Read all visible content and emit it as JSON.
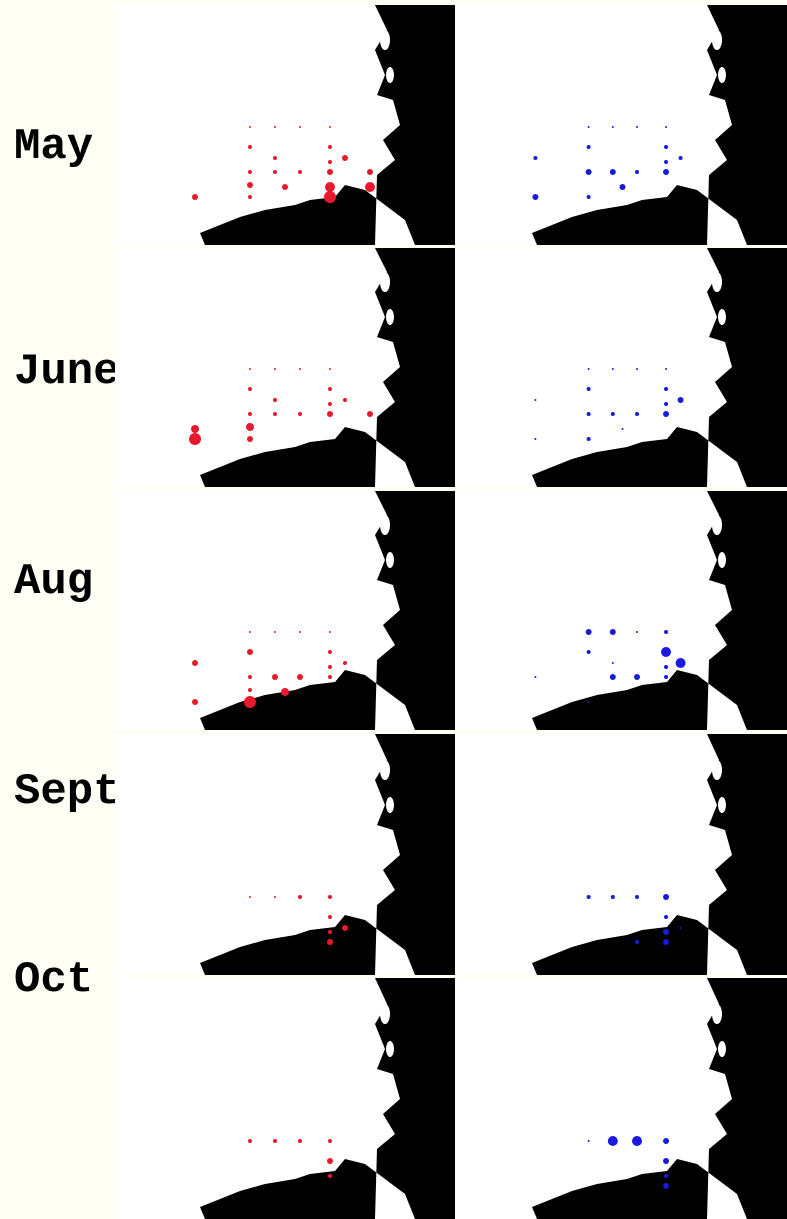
{
  "months": [
    {
      "label": "May",
      "red": [
        [
          25,
          1
        ],
        [
          50,
          1
        ],
        [
          75,
          1
        ],
        [
          100,
          1
        ],
        [
          100,
          2
        ],
        [
          100,
          2
        ],
        [
          100,
          3
        ],
        [
          100,
          3
        ],
        [
          120,
          2
        ],
        [
          75,
          2
        ],
        [
          50,
          2
        ],
        [
          50,
          2
        ],
        [
          75,
          2
        ],
        [
          25,
          2
        ],
        [
          25,
          3
        ],
        [
          -45,
          3
        ],
        [
          25,
          3
        ],
        [
          140,
          3
        ],
        [
          100,
          5
        ],
        [
          100,
          6
        ],
        [
          140,
          5
        ]
      ],
      "blue": [
        [
          25,
          1
        ],
        [
          50,
          1
        ],
        [
          75,
          1
        ],
        [
          100,
          1
        ],
        [
          100,
          2
        ],
        [
          100,
          2
        ],
        [
          100,
          3
        ],
        [
          125,
          2
        ],
        [
          75,
          2
        ],
        [
          50,
          3
        ],
        [
          25,
          2
        ],
        [
          25,
          3
        ],
        [
          -45,
          2
        ],
        [
          25,
          2
        ],
        [
          100,
          3
        ],
        [
          140,
          3
        ]
      ]
    },
    {
      "label": "June",
      "red": [
        [
          25,
          1
        ],
        [
          50,
          1
        ],
        [
          75,
          1
        ],
        [
          100,
          1
        ],
        [
          100,
          2
        ],
        [
          100,
          2
        ],
        [
          100,
          3
        ],
        [
          115,
          2
        ],
        [
          75,
          2
        ],
        [
          50,
          2
        ],
        [
          25,
          2
        ],
        [
          25,
          2
        ],
        [
          75,
          2
        ],
        [
          50,
          3
        ],
        [
          -45,
          4
        ],
        [
          100,
          6
        ],
        [
          155,
          4
        ],
        [
          125,
          3
        ]
      ],
      "blue": [
        [
          25,
          1
        ],
        [
          50,
          1
        ],
        [
          75,
          1
        ],
        [
          100,
          1
        ],
        [
          100,
          2
        ],
        [
          100,
          2
        ],
        [
          100,
          3
        ],
        [
          100,
          3
        ],
        [
          125,
          2
        ],
        [
          75,
          2
        ],
        [
          50,
          2
        ],
        [
          25,
          2
        ],
        [
          -45,
          1
        ],
        [
          25,
          2
        ],
        [
          125,
          1
        ],
        [
          150,
          1
        ]
      ]
    },
    {
      "label": "Aug",
      "red": [
        [
          25,
          1
        ],
        [
          50,
          1
        ],
        [
          100,
          1
        ],
        [
          125,
          1
        ],
        [
          100,
          2
        ],
        [
          100,
          2
        ],
        [
          100,
          2
        ],
        [
          125,
          2
        ],
        [
          25,
          3
        ],
        [
          50,
          3
        ],
        [
          75,
          3
        ],
        [
          25,
          2
        ],
        [
          -45,
          3
        ],
        [
          10,
          6
        ],
        [
          140,
          4
        ],
        [
          100,
          3
        ],
        [
          125,
          2
        ]
      ],
      "blue": [
        [
          25,
          3
        ],
        [
          50,
          3
        ],
        [
          100,
          1
        ],
        [
          100,
          2
        ],
        [
          100,
          5
        ],
        [
          120,
          2
        ],
        [
          25,
          2
        ],
        [
          50,
          5
        ],
        [
          75,
          3
        ],
        [
          100,
          3
        ],
        [
          25,
          2
        ],
        [
          -45,
          1
        ],
        [
          125,
          1
        ],
        [
          140,
          1
        ]
      ]
    },
    {
      "label": "Sept",
      "red": [
        [
          100,
          1
        ],
        [
          125,
          1
        ],
        [
          100,
          2
        ],
        [
          125,
          2
        ],
        [
          100,
          2
        ],
        [
          115,
          2
        ],
        [
          150,
          3
        ],
        [
          160,
          3
        ]
      ],
      "blue": [
        [
          100,
          2
        ],
        [
          125,
          2
        ],
        [
          100,
          2
        ],
        [
          115,
          3
        ],
        [
          100,
          2
        ],
        [
          130,
          3
        ],
        [
          150,
          3
        ],
        [
          100,
          1
        ],
        [
          140,
          2
        ]
      ]
    },
    {
      "label": "Oct",
      "red": [
        [
          100,
          2
        ],
        [
          100,
          2
        ],
        [
          110,
          2
        ],
        [
          100,
          2
        ],
        [
          140,
          3
        ],
        [
          100,
          2
        ]
      ],
      "blue": [
        [
          100,
          1
        ],
        [
          100,
          5
        ],
        [
          115,
          5
        ],
        [
          130,
          3
        ],
        [
          100,
          3
        ],
        [
          140,
          2
        ],
        [
          100,
          3
        ]
      ]
    }
  ],
  "colors": {
    "red": "#e8192c",
    "blue": "#1a1adc",
    "land": "#000000",
    "water": "#ffffff",
    "background": "#fffff5"
  }
}
